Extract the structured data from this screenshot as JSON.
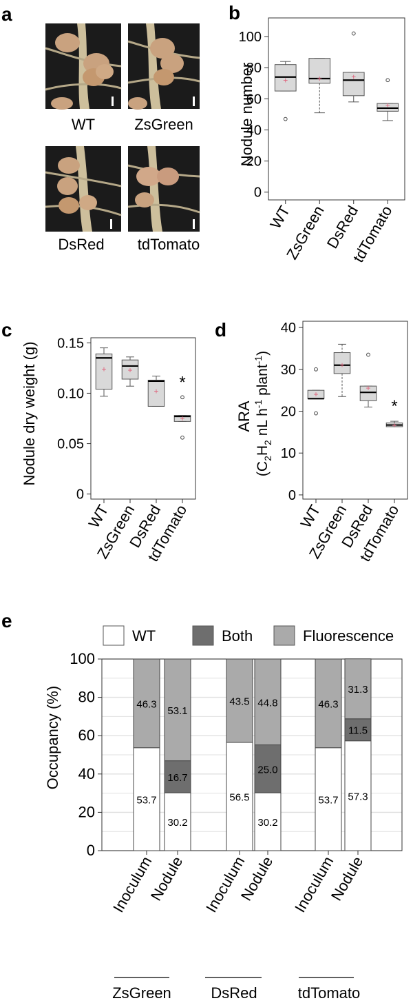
{
  "panel_a": {
    "letter": "a",
    "photos": [
      {
        "label": "WT"
      },
      {
        "label": "ZsGreen"
      },
      {
        "label": "DsRed"
      },
      {
        "label": "tdTomato"
      }
    ]
  },
  "chart_data": [
    {
      "id": "b",
      "letter": "b",
      "type": "box",
      "ylabel": "Nodule number",
      "ylim": [
        -5,
        112
      ],
      "yticks": [
        0,
        20,
        40,
        60,
        80,
        100
      ],
      "categories": [
        "WT",
        "ZsGreen",
        "DsRed",
        "tdTomato"
      ],
      "boxes": [
        {
          "lo": 65,
          "q1": 65,
          "median": 74,
          "q3": 82,
          "hi": 84,
          "mean": 72,
          "outliers": [
            47
          ]
        },
        {
          "lo": 51,
          "q1": 70,
          "median": 73,
          "q3": 86,
          "hi": 86,
          "mean": 73,
          "outliers": []
        },
        {
          "lo": 58,
          "q1": 62,
          "median": 72,
          "q3": 77,
          "hi": 77,
          "mean": 74,
          "outliers": [
            102
          ]
        },
        {
          "lo": 46,
          "q1": 52,
          "median": 54,
          "q3": 57,
          "hi": 57,
          "mean": 56,
          "outliers": [
            72
          ]
        }
      ]
    },
    {
      "id": "c",
      "letter": "c",
      "type": "box",
      "ylabel": "Nodule dry weight (g)",
      "ylim": [
        -0.005,
        0.155
      ],
      "yticks": [
        0,
        0.05,
        0.1,
        0.15
      ],
      "yticklabels": [
        "0",
        "0.05",
        "0.10",
        "0.15"
      ],
      "categories": [
        "WT",
        "ZsGreen",
        "DsRed",
        "tdTomato"
      ],
      "boxes": [
        {
          "lo": 0.097,
          "q1": 0.104,
          "median": 0.135,
          "q3": 0.139,
          "hi": 0.145,
          "mean": 0.124,
          "outliers": []
        },
        {
          "lo": 0.107,
          "q1": 0.114,
          "median": 0.127,
          "q3": 0.133,
          "hi": 0.136,
          "mean": 0.123,
          "outliers": []
        },
        {
          "lo": 0.087,
          "q1": 0.087,
          "median": 0.112,
          "q3": 0.113,
          "hi": 0.117,
          "mean": 0.102,
          "outliers": []
        },
        {
          "lo": 0.072,
          "q1": 0.072,
          "median": 0.077,
          "q3": 0.078,
          "hi": 0.078,
          "mean": 0.075,
          "outliers": [
            0.096,
            0.056
          ]
        }
      ],
      "significance": [
        {
          "category": "tdTomato",
          "mark": "*"
        }
      ]
    },
    {
      "id": "d",
      "letter": "d",
      "type": "box",
      "ylabel": "ARA",
      "ylabel2": "(C2H2 nL h-1 plant-1)",
      "ylim": [
        -1,
        41.5
      ],
      "yticks": [
        0,
        10,
        20,
        30,
        40
      ],
      "categories": [
        "WT",
        "ZsGreen",
        "DsRed",
        "tdTomato"
      ],
      "boxes": [
        {
          "lo": 23,
          "q1": 23,
          "median": 23,
          "q3": 25,
          "hi": 25,
          "mean": 24,
          "outliers": [
            30,
            19.5
          ]
        },
        {
          "lo": 23.5,
          "q1": 29,
          "median": 31,
          "q3": 34,
          "hi": 36,
          "mean": 31,
          "outliers": []
        },
        {
          "lo": 21,
          "q1": 22.5,
          "median": 24.5,
          "q3": 26,
          "hi": 26,
          "mean": 25.5,
          "outliers": [
            33.5
          ]
        },
        {
          "lo": 16.3,
          "q1": 16.3,
          "median": 16.7,
          "q3": 17.2,
          "hi": 17.6,
          "mean": 16.6,
          "outliers": []
        }
      ],
      "significance": [
        {
          "category": "tdTomato",
          "mark": "*"
        }
      ]
    },
    {
      "id": "e",
      "letter": "e",
      "type": "stacked_bar",
      "ylabel": "Occupancy (%)",
      "ylim": [
        0,
        100
      ],
      "yticks": [
        0,
        20,
        40,
        60,
        80,
        100
      ],
      "legend": [
        {
          "name": "WT",
          "color": "#ffffff"
        },
        {
          "name": "Both",
          "color": "#6e6e6e"
        },
        {
          "name": "Fluorescence",
          "color": "#aaaaaa"
        }
      ],
      "categories": [
        "Inoculum",
        "Nodule",
        "Inoculum",
        "Nodule",
        "Inoculum",
        "Nodule"
      ],
      "groups": [
        "ZsGreen",
        "DsRed",
        "tdTomato"
      ],
      "series": [
        {
          "name": "WT",
          "values": [
            53.7,
            30.2,
            56.5,
            30.2,
            53.7,
            57.3
          ]
        },
        {
          "name": "Both",
          "values": [
            0,
            16.7,
            0,
            25.0,
            0,
            11.5
          ]
        },
        {
          "name": "Fluorescence",
          "values": [
            46.3,
            53.1,
            43.5,
            44.8,
            46.3,
            31.3
          ]
        }
      ],
      "labels": [
        {
          "bar": 0,
          "series": "WT",
          "text": "53.7"
        },
        {
          "bar": 0,
          "series": "Fluorescence",
          "text": "46.3"
        },
        {
          "bar": 1,
          "series": "WT",
          "text": "30.2"
        },
        {
          "bar": 1,
          "series": "Both",
          "text": "16.7"
        },
        {
          "bar": 1,
          "series": "Fluorescence",
          "text": "53.1"
        },
        {
          "bar": 2,
          "series": "WT",
          "text": "56.5"
        },
        {
          "bar": 2,
          "series": "Fluorescence",
          "text": "43.5"
        },
        {
          "bar": 3,
          "series": "WT",
          "text": "30.2"
        },
        {
          "bar": 3,
          "series": "Both",
          "text": "25.0"
        },
        {
          "bar": 3,
          "series": "Fluorescence",
          "text": "44.8"
        },
        {
          "bar": 4,
          "series": "WT",
          "text": "53.7"
        },
        {
          "bar": 4,
          "series": "Fluorescence",
          "text": "46.3"
        },
        {
          "bar": 5,
          "series": "WT",
          "text": "57.3"
        },
        {
          "bar": 5,
          "series": "Both",
          "text": "11.5"
        },
        {
          "bar": 5,
          "series": "Fluorescence",
          "text": "31.3"
        }
      ]
    }
  ],
  "colors": {
    "box_fill": "#d9d9d9",
    "mean_marker": "#e0607a",
    "photo_bg": "#1b1b1b",
    "nodule": "#c9a27f",
    "root": "#cdbf9c",
    "bar_wt": "#ffffff",
    "bar_both": "#6e6e6e",
    "bar_fluor": "#aaaaaa",
    "gridline": "#e0e0e0"
  }
}
